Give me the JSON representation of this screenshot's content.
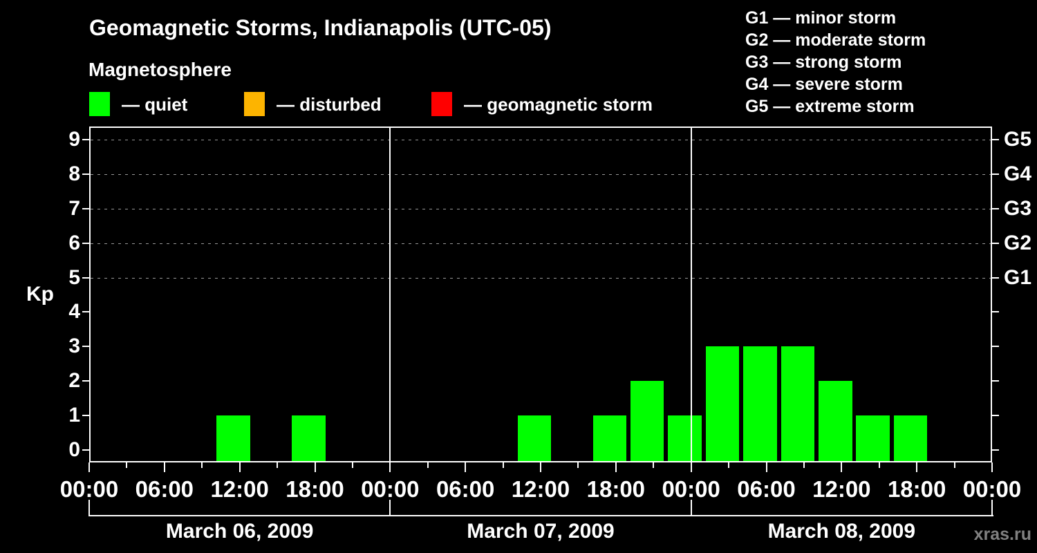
{
  "title": "Geomagnetic Storms, Indianapolis (UTC-05)",
  "subtitle": "Magnetosphere",
  "legend": {
    "items": [
      {
        "name": "quiet",
        "label": "— quiet",
        "color": "#00ff00"
      },
      {
        "name": "disturbed",
        "label": "— disturbed",
        "color": "#fdb400"
      },
      {
        "name": "storm",
        "label": "— geomagnetic storm",
        "color": "#ff0000"
      }
    ]
  },
  "storm_scale": [
    "G1 — minor storm",
    "G2 — moderate storm",
    "G3 — strong storm",
    "G4 — severe storm",
    "G5 — extreme storm"
  ],
  "watermark": "xras.ru",
  "chart_data": {
    "type": "bar",
    "title": "Geomagnetic Storms, Indianapolis (UTC-05)",
    "subtitle": "Magnetosphere",
    "ylabel": "Kp",
    "ylim": [
      0,
      9
    ],
    "yticks": [
      0,
      1,
      2,
      3,
      4,
      5,
      6,
      7,
      8,
      9
    ],
    "grid_kp_levels": [
      5,
      6,
      7,
      8,
      9
    ],
    "right_axis_labels": [
      {
        "label": "G1",
        "kp": 5
      },
      {
        "label": "G2",
        "kp": 6
      },
      {
        "label": "G3",
        "kp": 7
      },
      {
        "label": "G4",
        "kp": 8
      },
      {
        "label": "G5",
        "kp": 9
      }
    ],
    "x_tick_labels": [
      "00:00",
      "06:00",
      "12:00",
      "18:00",
      "00:00",
      "06:00",
      "12:00",
      "18:00",
      "00:00",
      "06:00",
      "12:00",
      "18:00",
      "00:00"
    ],
    "bin_hours": 3,
    "first_bin_start_hour_local": 1,
    "days": [
      {
        "date": "March 06, 2009",
        "kp_values": [
          0,
          0,
          0,
          1,
          0,
          1,
          0,
          0
        ]
      },
      {
        "date": "March 07, 2009",
        "kp_values": [
          0,
          0,
          0,
          1,
          0,
          1,
          2,
          1
        ]
      },
      {
        "date": "March 08, 2009",
        "kp_values": [
          3,
          3,
          3,
          2,
          1,
          1,
          0,
          0
        ]
      }
    ],
    "bar_color": "#00ff00",
    "grid_color": "#9a9a9a",
    "axis_color": "#ffffff",
    "background_color": "#000000",
    "legend_position": "top"
  }
}
